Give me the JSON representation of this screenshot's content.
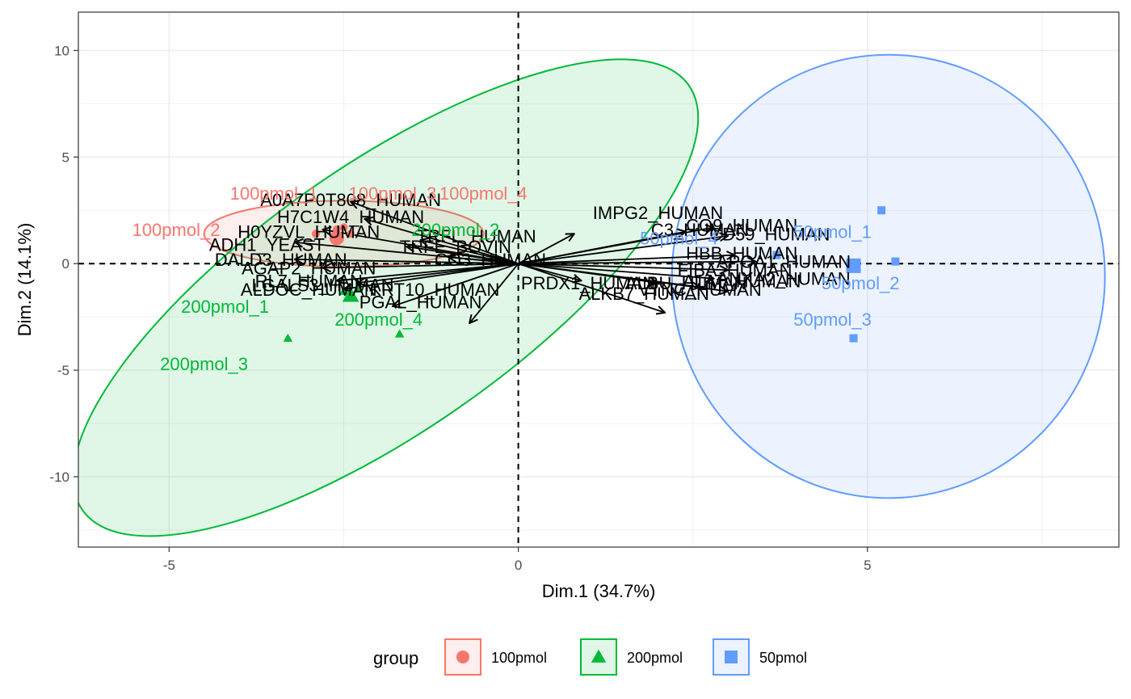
{
  "chart_data": {
    "type": "scatter",
    "subtype": "pca-biplot",
    "title": "",
    "xlabel": "Dim.1 (34.7%)",
    "ylabel": "Dim.2 (14.1%)",
    "xlim": [
      -6.3,
      8.6
    ],
    "ylim": [
      -13.3,
      11.8
    ],
    "x_ticks": [
      -5,
      0,
      5
    ],
    "y_ticks": [
      -10,
      -5,
      0,
      5,
      10
    ],
    "grid": true,
    "legend": {
      "title": "group",
      "placement": "bottom",
      "entries": [
        {
          "label": "100pmol",
          "color": "#f8766d",
          "shape": "circle"
        },
        {
          "label": "200pmol",
          "color": "#00ba38",
          "shape": "triangle"
        },
        {
          "label": "50pmol",
          "color": "#619cff",
          "shape": "square"
        }
      ]
    },
    "series": [
      {
        "name": "100pmol",
        "color": "#f8766d",
        "shape": "circle",
        "ellipse": {
          "cx": -2.5,
          "cy": 1.4,
          "rx": 2.0,
          "ry": 1.55,
          "angle": 0
        },
        "centroid": [
          -2.6,
          1.2
        ],
        "points": [
          {
            "label": "100pmol_1",
            "x": -2.9,
            "y": 1.4
          },
          {
            "label": "100pmol_2",
            "x": -2.5,
            "y": 1.7
          },
          {
            "label": "100pmol_3",
            "x": -2.4,
            "y": 1.4
          },
          {
            "label": "100pmol_4",
            "x": -2.6,
            "y": 1.6
          }
        ],
        "point_labels": [
          {
            "label": "100pmol_1",
            "x": -3.5,
            "y": 3.3
          },
          {
            "label": "100pmol_2",
            "x": -4.9,
            "y": 1.6
          },
          {
            "label": "100pmol_3",
            "x": -1.8,
            "y": 3.3
          },
          {
            "label": "100pmol_4",
            "x": -0.5,
            "y": 3.3
          }
        ]
      },
      {
        "name": "200pmol",
        "color": "#00ba38",
        "shape": "triangle",
        "ellipse": {
          "cx": -1.9,
          "cy": -1.6,
          "rx": 5.3,
          "ry": 6.2,
          "angle": -35
        },
        "centroid": [
          -2.4,
          -1.5
        ],
        "points": [
          {
            "label": "200pmol_1",
            "x": -2.5,
            "y": -1.3
          },
          {
            "label": "200pmol_2",
            "x": -2.3,
            "y": -1.2
          },
          {
            "label": "200pmol_3",
            "x": -3.3,
            "y": -3.5
          },
          {
            "label": "200pmol_4",
            "x": -1.7,
            "y": -3.3
          }
        ],
        "point_labels": [
          {
            "label": "200pmol_1",
            "x": -4.2,
            "y": -2.0
          },
          {
            "label": "200pmol_2",
            "x": -0.9,
            "y": 1.6
          },
          {
            "label": "200pmol_3",
            "x": -4.5,
            "y": -4.7
          },
          {
            "label": "200pmol_4",
            "x": -2.0,
            "y": -2.6
          }
        ]
      },
      {
        "name": "50pmol",
        "color": "#619cff",
        "shape": "square",
        "ellipse": {
          "cx": 5.3,
          "cy": -0.6,
          "rx": 3.1,
          "ry": 10.4,
          "angle": 0
        },
        "centroid": [
          4.8,
          -0.1
        ],
        "points": [
          {
            "label": "50pmol_1",
            "x": 5.2,
            "y": 2.5
          },
          {
            "label": "50pmol_2",
            "x": 5.4,
            "y": 0.1
          },
          {
            "label": "50pmol_3",
            "x": 4.8,
            "y": -3.5
          },
          {
            "label": "50pmol_4",
            "x": 3.7,
            "y": 0.4
          }
        ],
        "point_labels": [
          {
            "label": "50pmol_1",
            "x": 4.5,
            "y": 1.5
          },
          {
            "label": "50pmol_2",
            "x": 4.9,
            "y": -0.9
          },
          {
            "label": "50pmol_3",
            "x": 4.5,
            "y": -2.6
          },
          {
            "label": "50pmol_4",
            "x": 2.3,
            "y": 1.2
          }
        ]
      }
    ],
    "variables": [
      {
        "label": "A0A7P0T808_HUMAN",
        "x": -2.4,
        "y": 2.9,
        "lx": -2.4,
        "ly": 3.0
      },
      {
        "label": "H7C1W4_HUMAN",
        "x": -2.2,
        "y": 2.1,
        "lx": -2.4,
        "ly": 2.2
      },
      {
        "label": "H0YZVL_HUMAN",
        "x": -2.8,
        "y": 1.6,
        "lx": -3.0,
        "ly": 1.5
      },
      {
        "label": "ADH1_YEAST",
        "x": -3.2,
        "y": 1.0,
        "lx": -3.6,
        "ly": 0.9
      },
      {
        "label": "DALD3_HUMAN",
        "x": -3.2,
        "y": 0.2,
        "lx": -3.4,
        "ly": 0.2
      },
      {
        "label": "AGAP2_HUMAN",
        "x": -2.8,
        "y": -0.2,
        "lx": -3.0,
        "ly": -0.2
      },
      {
        "label": "RL7_HUMAN",
        "x": -2.6,
        "y": -0.8,
        "lx": -3.0,
        "ly": -0.8
      },
      {
        "label": "ALDOC_HUMAN",
        "x": -2.5,
        "y": -1.2,
        "lx": -3.0,
        "ly": -1.2
      },
      {
        "label": "LGALS3_HUMAN",
        "x": -2.3,
        "y": -0.9,
        "lx": -2.8,
        "ly": -1.0
      },
      {
        "label": "PGAL_HUMAN",
        "x": -1.8,
        "y": -2.0,
        "lx": -1.4,
        "ly": -1.8
      },
      {
        "label": "KRT10_HUMAN",
        "x": -0.7,
        "y": -2.8,
        "lx": -1.2,
        "ly": -1.2
      },
      {
        "label": "TRFE_BOVIN",
        "x": -1.6,
        "y": 0.8,
        "lx": -0.9,
        "ly": 0.8
      },
      {
        "label": "TRFL_HUMAN",
        "x": -1.4,
        "y": 1.1,
        "lx": -0.6,
        "ly": 1.3
      },
      {
        "label": "CO3_HUMAN",
        "x": -1.0,
        "y": 0.3,
        "lx": -0.4,
        "ly": 0.2
      },
      {
        "label": "IMPG2_HUMAN",
        "x": 0.8,
        "y": 1.4,
        "lx": 2.0,
        "ly": 2.4
      },
      {
        "label": "PRDX1_HUMAN",
        "x": 0.9,
        "y": -0.8,
        "lx": 1.0,
        "ly": -0.9
      },
      {
        "label": "ALKB7_HUMAN",
        "x": 2.1,
        "y": -2.3,
        "lx": 1.8,
        "ly": -1.4
      },
      {
        "label": "C3_HUMAN",
        "x": 2.4,
        "y": 1.5,
        "lx": 2.6,
        "ly": 1.6
      },
      {
        "label": "CO9_HUMAN",
        "x": 2.8,
        "y": 1.7,
        "lx": 3.2,
        "ly": 1.8
      },
      {
        "label": "CD59_HUMAN",
        "x": 3.0,
        "y": 1.3,
        "lx": 3.6,
        "ly": 1.4
      },
      {
        "label": "HBB_HUMAN",
        "x": 3.1,
        "y": 0.4,
        "lx": 3.2,
        "ly": 0.5
      },
      {
        "label": "APOA1_HUMAN",
        "x": 3.4,
        "y": 0.1,
        "lx": 3.8,
        "ly": 0.1
      },
      {
        "label": "FIBA_HUMAN",
        "x": 3.0,
        "y": -0.3,
        "lx": 3.1,
        "ly": -0.3
      },
      {
        "label": "A1AT_HUMAN",
        "x": 2.8,
        "y": -0.7,
        "lx": 3.2,
        "ly": -0.8
      },
      {
        "label": "ANXA2_HUMAN",
        "x": 3.0,
        "y": -1.3,
        "lx": 3.8,
        "ly": -0.7
      },
      {
        "label": "VTNC_HUMAN",
        "x": 2.6,
        "y": -1.1,
        "lx": 2.6,
        "ly": -1.2
      },
      {
        "label": "ALBU_HUMAN",
        "x": 2.0,
        "y": -0.9,
        "lx": 2.4,
        "ly": -0.9
      }
    ]
  }
}
